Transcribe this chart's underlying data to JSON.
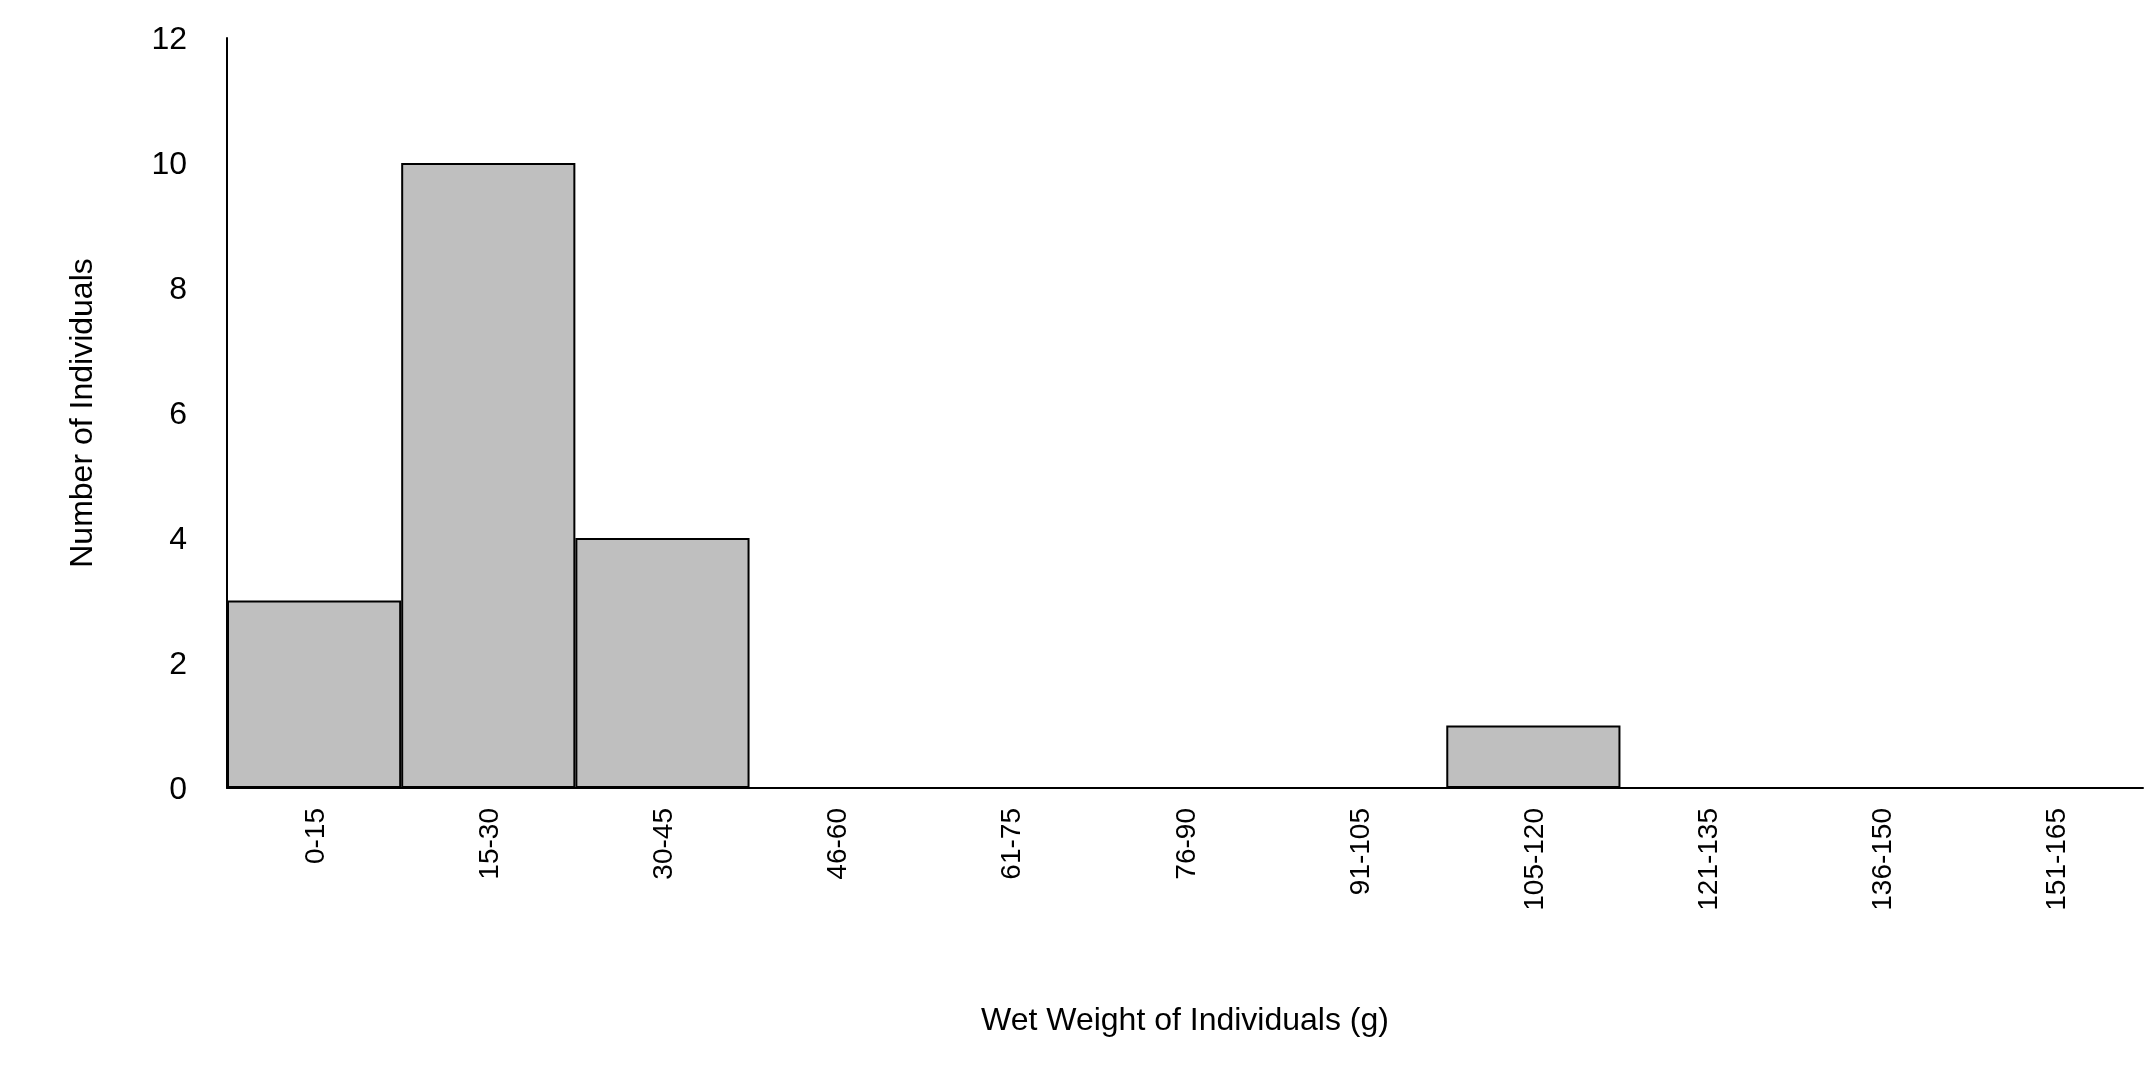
{
  "chart_data": {
    "type": "bar",
    "xlabel": "Wet Weight of Individuals (g)",
    "ylabel": "Number of Individuals",
    "categories": [
      "0-15",
      "15-30",
      "30-45",
      "46-60",
      "61-75",
      "76-90",
      "91-105",
      "105-120",
      "121-135",
      "136-150",
      "151-165"
    ],
    "values": [
      3,
      10,
      4,
      0,
      0,
      0,
      0,
      1,
      0,
      0,
      0
    ],
    "color": "#bfbfbf",
    "ylim": [
      0,
      12
    ],
    "yticks": [
      0,
      2,
      4,
      6,
      8,
      10,
      12
    ],
    "grid": false
  }
}
